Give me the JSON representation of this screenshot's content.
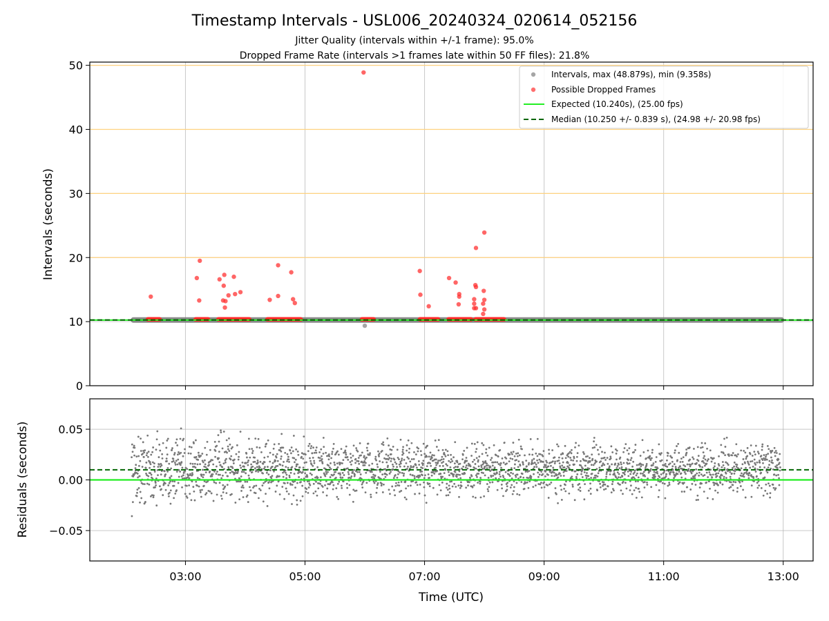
{
  "chart_data": {
    "title": "Timestamp Intervals - USL006_20240324_020614_052156",
    "subtitles": [
      "Jitter Quality (intervals within +/-1 frame): 95.0%",
      "Dropped Frame Rate (intervals >1 frames late within 50 FF files): 21.8%"
    ],
    "xlabel": "Time (UTC)",
    "x_ticks": [
      "03:00",
      "05:00",
      "07:00",
      "09:00",
      "11:00",
      "13:00"
    ],
    "x_tick_hours": [
      3,
      5,
      7,
      9,
      11,
      13
    ],
    "x_range_hours": [
      1.4,
      13.5
    ],
    "panels": [
      {
        "name": "intervals",
        "type": "scatter",
        "ylabel": "Intervals (seconds)",
        "ylim": [
          0,
          50.5
        ],
        "y_ticks": [
          0,
          10,
          20,
          30,
          40,
          50
        ],
        "grid": true,
        "highlight_lines": [
          20,
          30,
          40,
          50
        ],
        "highlight_color": "#FFD27F",
        "legend": {
          "placement": "top-right",
          "entries": [
            {
              "kind": "marker",
              "color": "#a6a6a6",
              "label": "Intervals, max (48.879s), min (9.358s)"
            },
            {
              "kind": "marker",
              "color": "#ff5555",
              "label": "Possible Dropped Frames"
            },
            {
              "kind": "line",
              "color": "#22ee22",
              "style": "solid",
              "label": "Expected (10.240s), (25.00 fps)"
            },
            {
              "kind": "line",
              "color": "#006400",
              "style": "dashed",
              "label": "Median (10.250 +/- 0.839 s), (24.98 +/- 20.98 fps)"
            }
          ]
        },
        "expected": 10.24,
        "median": 10.25,
        "baseline": {
          "start_hour": 2.13,
          "end_hour": 12.97,
          "value": 10.25,
          "color": "#777777"
        },
        "gray_points": [
          {
            "t": 6.0,
            "v": 9.36
          }
        ],
        "red_clusters": [
          {
            "start": 2.37,
            "end": 2.57
          },
          {
            "start": 3.17,
            "end": 3.38
          },
          {
            "start": 3.55,
            "end": 4.07
          },
          {
            "start": 4.37,
            "end": 4.93
          },
          {
            "start": 5.95,
            "end": 6.15
          },
          {
            "start": 6.92,
            "end": 7.23
          },
          {
            "start": 7.4,
            "end": 7.78
          },
          {
            "start": 7.85,
            "end": 8.33
          }
        ],
        "red_points": [
          {
            "t": 5.98,
            "v": 48.88
          },
          {
            "t": 2.42,
            "v": 13.9
          },
          {
            "t": 3.19,
            "v": 16.8
          },
          {
            "t": 3.24,
            "v": 19.5
          },
          {
            "t": 3.23,
            "v": 13.3
          },
          {
            "t": 3.57,
            "v": 16.6
          },
          {
            "t": 3.65,
            "v": 17.3
          },
          {
            "t": 3.64,
            "v": 15.6
          },
          {
            "t": 3.63,
            "v": 13.3
          },
          {
            "t": 3.67,
            "v": 13.2
          },
          {
            "t": 3.66,
            "v": 12.2
          },
          {
            "t": 3.72,
            "v": 14.1
          },
          {
            "t": 3.81,
            "v": 17.0
          },
          {
            "t": 3.83,
            "v": 14.3
          },
          {
            "t": 3.92,
            "v": 14.6
          },
          {
            "t": 4.41,
            "v": 13.4
          },
          {
            "t": 4.55,
            "v": 18.8
          },
          {
            "t": 4.55,
            "v": 14.0
          },
          {
            "t": 4.77,
            "v": 17.7
          },
          {
            "t": 4.8,
            "v": 13.5
          },
          {
            "t": 4.83,
            "v": 12.9
          },
          {
            "t": 6.92,
            "v": 17.9
          },
          {
            "t": 6.93,
            "v": 14.2
          },
          {
            "t": 7.07,
            "v": 12.4
          },
          {
            "t": 7.41,
            "v": 16.8
          },
          {
            "t": 7.52,
            "v": 16.1
          },
          {
            "t": 7.58,
            "v": 14.3
          },
          {
            "t": 7.58,
            "v": 13.9
          },
          {
            "t": 7.57,
            "v": 12.7
          },
          {
            "t": 7.85,
            "v": 15.7
          },
          {
            "t": 7.86,
            "v": 15.4
          },
          {
            "t": 7.86,
            "v": 21.5
          },
          {
            "t": 7.83,
            "v": 13.5
          },
          {
            "t": 7.83,
            "v": 12.8
          },
          {
            "t": 7.83,
            "v": 12.1
          },
          {
            "t": 7.86,
            "v": 12.1
          },
          {
            "t": 8.0,
            "v": 23.9
          },
          {
            "t": 7.99,
            "v": 14.8
          },
          {
            "t": 8.0,
            "v": 13.4
          },
          {
            "t": 7.98,
            "v": 12.8
          },
          {
            "t": 8.0,
            "v": 11.9
          },
          {
            "t": 7.98,
            "v": 11.2
          }
        ]
      },
      {
        "name": "residuals",
        "type": "scatter",
        "ylabel": "Residuals (seconds)",
        "ylim": [
          -0.08,
          0.08
        ],
        "y_ticks": [
          -0.05,
          0.0,
          0.05
        ],
        "y_tick_labels": [
          "−0.05",
          "0.00",
          "0.05"
        ],
        "grid": true,
        "expected": 0.0,
        "median": 0.01,
        "point_color": "#777777",
        "point_time_range": [
          2.1,
          12.95
        ],
        "point_count": 2600,
        "spread": {
          "center": 0.01,
          "early_halfwidth": 0.035,
          "late_halfwidth": 0.025
        }
      }
    ]
  }
}
